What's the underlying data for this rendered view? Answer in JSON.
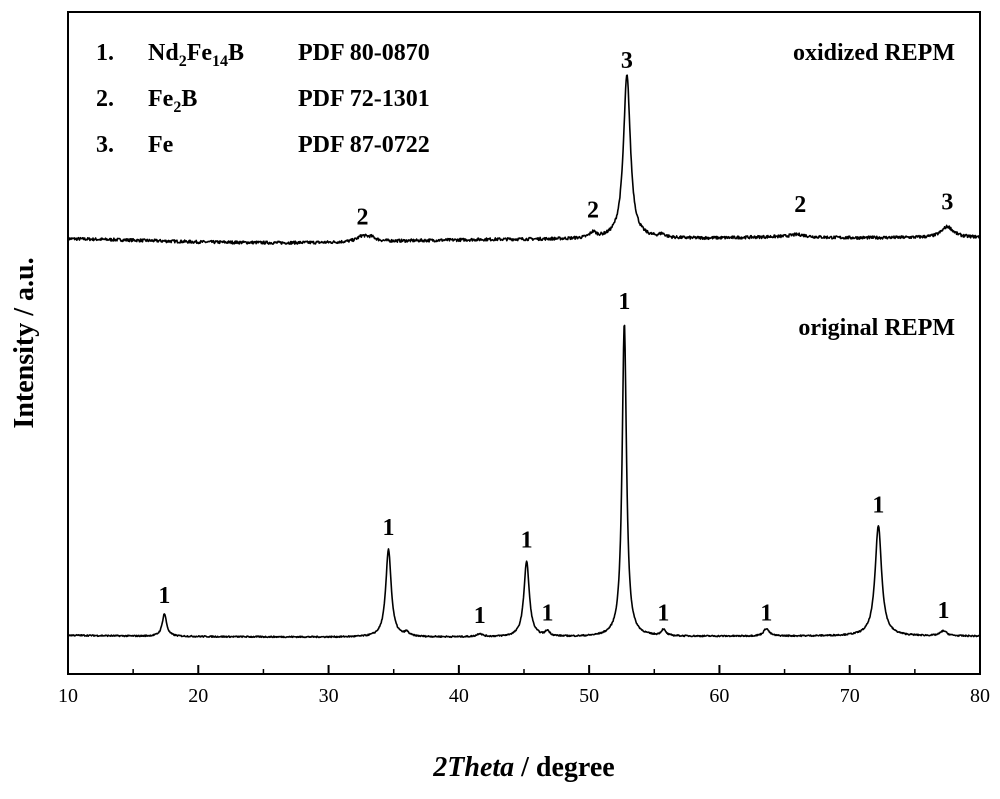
{
  "chart_data": {
    "type": "line",
    "title": "",
    "xlabel": {
      "italic": "2Theta",
      "rest": " / degree"
    },
    "ylabel": "Intensity / a.u.",
    "xlim": [
      10,
      80
    ],
    "xticks": [
      10,
      20,
      30,
      40,
      50,
      60,
      70,
      80
    ],
    "y_ticks_labeled": false,
    "grid": false,
    "legend": {
      "placement": "top-left",
      "entries": [
        {
          "number": "1.",
          "formula": [
            [
              "Nd",
              false
            ],
            [
              "2",
              true
            ],
            [
              "Fe",
              false
            ],
            [
              "14",
              true
            ],
            [
              "B",
              false
            ]
          ],
          "pdf": "PDF 80-0870"
        },
        {
          "number": "2.",
          "formula": [
            [
              "Fe",
              false
            ],
            [
              "2",
              true
            ],
            [
              "B",
              false
            ]
          ],
          "pdf": "PDF 72-1301"
        },
        {
          "number": "3.",
          "formula": [
            [
              "Fe",
              false
            ]
          ],
          "pdf": "PDF 87-0722"
        }
      ]
    },
    "series": [
      {
        "name": "oxidized REPM",
        "baseline": 0.6,
        "background": [
          [
            10,
            0.6
          ],
          [
            14,
            0.2
          ],
          [
            20,
            -0.6
          ],
          [
            26,
            -0.9
          ],
          [
            30,
            -0.8
          ],
          [
            36,
            -0.2
          ],
          [
            42,
            0.3
          ],
          [
            50,
            0.5
          ],
          [
            56,
            0.6
          ],
          [
            60,
            0.8
          ],
          [
            64,
            1.2
          ],
          [
            70,
            0.9
          ],
          [
            75,
            1.0
          ],
          [
            80,
            1.1
          ]
        ],
        "peaks": [
          {
            "x": 32.6,
            "height": 2.0,
            "width": 0.5
          },
          {
            "x": 33.3,
            "height": 1.3,
            "width": 0.4
          },
          {
            "x": 50.3,
            "height": 2.0,
            "width": 0.3
          },
          {
            "x": 52.9,
            "height": 60,
            "width": 0.32
          },
          {
            "x": 55.6,
            "height": 1.2,
            "width": 0.3
          },
          {
            "x": 66.0,
            "height": 1.0,
            "width": 0.8
          },
          {
            "x": 77.5,
            "height": 4.0,
            "width": 0.55
          }
        ],
        "peak_labels": [
          {
            "x": 32.6,
            "y": 6.5,
            "text": "2"
          },
          {
            "x": 50.3,
            "y": 9,
            "text": "2"
          },
          {
            "x": 52.9,
            "y": 64,
            "text": "3"
          },
          {
            "x": 66.2,
            "y": 11,
            "text": "2"
          },
          {
            "x": 77.5,
            "y": 12,
            "text": "3"
          }
        ]
      },
      {
        "name": "original REPM",
        "baseline": 1.0,
        "background": [
          [
            10,
            1.2
          ],
          [
            15,
            0.5
          ],
          [
            22,
            0.0
          ],
          [
            30,
            -0.3
          ],
          [
            40,
            -0.3
          ],
          [
            50,
            -0.2
          ],
          [
            60,
            0.3
          ],
          [
            70,
            0.6
          ],
          [
            80,
            0.4
          ]
        ],
        "peaks": [
          {
            "x": 17.4,
            "height": 18,
            "width": 0.2
          },
          {
            "x": 34.6,
            "height": 70,
            "width": 0.25
          },
          {
            "x": 36.0,
            "height": 3,
            "width": 0.2
          },
          {
            "x": 41.6,
            "height": 2.5,
            "width": 0.25
          },
          {
            "x": 45.2,
            "height": 60,
            "width": 0.25
          },
          {
            "x": 46.8,
            "height": 4,
            "width": 0.2
          },
          {
            "x": 52.7,
            "height": 250,
            "width": 0.2
          },
          {
            "x": 55.7,
            "height": 5,
            "width": 0.2
          },
          {
            "x": 63.6,
            "height": 6,
            "width": 0.25
          },
          {
            "x": 72.2,
            "height": 88,
            "width": 0.3
          },
          {
            "x": 77.2,
            "height": 4,
            "width": 0.3
          }
        ],
        "peak_labels": [
          {
            "x": 17.4,
            "y": 28,
            "text": "1"
          },
          {
            "x": 34.6,
            "y": 82,
            "text": "1"
          },
          {
            "x": 41.6,
            "y": 12,
            "text": "1"
          },
          {
            "x": 45.2,
            "y": 72,
            "text": "1"
          },
          {
            "x": 46.8,
            "y": 14,
            "text": "1"
          },
          {
            "x": 52.7,
            "y": 262,
            "text": "1"
          },
          {
            "x": 55.7,
            "y": 14,
            "text": "1"
          },
          {
            "x": 63.6,
            "y": 14,
            "text": "1"
          },
          {
            "x": 72.2,
            "y": 100,
            "text": "1"
          },
          {
            "x": 77.2,
            "y": 16,
            "text": "1"
          }
        ]
      }
    ]
  }
}
